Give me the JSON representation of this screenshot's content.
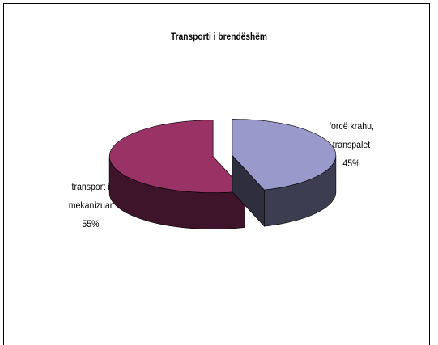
{
  "chart_data": {
    "type": "pie",
    "title": "Transporti i brendëshëm",
    "categories": [
      "forcë krahu, transpalet",
      "transport i mekanizuar"
    ],
    "values": [
      45,
      55
    ],
    "value_labels": [
      "45%",
      "55%"
    ],
    "colors": [
      "#9999cc",
      "#993366"
    ]
  }
}
